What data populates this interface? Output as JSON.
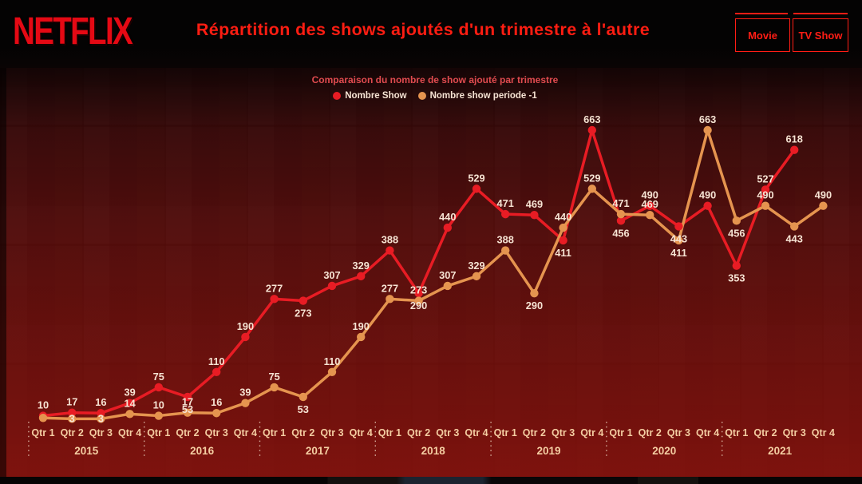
{
  "header": {
    "logo": "NETFLIX",
    "title": "Répartition des shows ajoutés d'un trimestre à l'autre",
    "filters": [
      {
        "label": "Movie"
      },
      {
        "label": "TV Show"
      }
    ]
  },
  "theme": {
    "netflix_red": "#e50914",
    "title_red": "#fe1d12",
    "subtitle_red": "#e04b4f",
    "button_red": "#ff1d15",
    "axis_label_color": "#f4cda2",
    "data_label_color": "#f6e3d3",
    "background_dark_red": "#6b0b09"
  },
  "chart_data": {
    "type": "line",
    "title": "Comparaison du nombre de show ajouté par trimestre",
    "legend_position": "top",
    "grid": false,
    "y_axis_visible": false,
    "ylim": [
      0,
      700
    ],
    "years": [
      "2015",
      "2016",
      "2017",
      "2018",
      "2019",
      "2020",
      "2021"
    ],
    "quarters_per_year": [
      "Qtr 1",
      "Qtr 2",
      "Qtr 3",
      "Qtr 4"
    ],
    "series": [
      {
        "name": "Nombre Show",
        "color": "#e81c24",
        "values": [
          10,
          17,
          16,
          39,
          75,
          53,
          110,
          190,
          277,
          273,
          307,
          329,
          388,
          290,
          440,
          529,
          471,
          469,
          411,
          663,
          456,
          490,
          443,
          490,
          353,
          527,
          618,
          null
        ],
        "label_pos": [
          "a",
          "a",
          "a",
          "a",
          "a",
          "b",
          "a",
          "a",
          "a",
          "b",
          "a",
          "a",
          "a",
          "b",
          "a",
          "a",
          "a",
          "a",
          "b",
          "a",
          "b",
          "a",
          "b",
          "a",
          "b",
          "a",
          "a",
          null
        ]
      },
      {
        "name": "Nombre show periode -1",
        "color": "#e5944f",
        "values": [
          5,
          3,
          3,
          14,
          10,
          17,
          16,
          39,
          75,
          53,
          110,
          190,
          277,
          273,
          307,
          329,
          388,
          290,
          440,
          529,
          471,
          469,
          411,
          663,
          456,
          490,
          443,
          490
        ],
        "label_pos": [
          null,
          "o",
          "o",
          "a",
          "a",
          "a",
          "a",
          "a",
          "a",
          "b",
          "a",
          "a",
          "a",
          "a",
          "a",
          "a",
          "a",
          "b",
          "a",
          "a",
          "a",
          "a",
          "b",
          "a",
          "b",
          "a",
          "b",
          "a"
        ]
      }
    ]
  }
}
